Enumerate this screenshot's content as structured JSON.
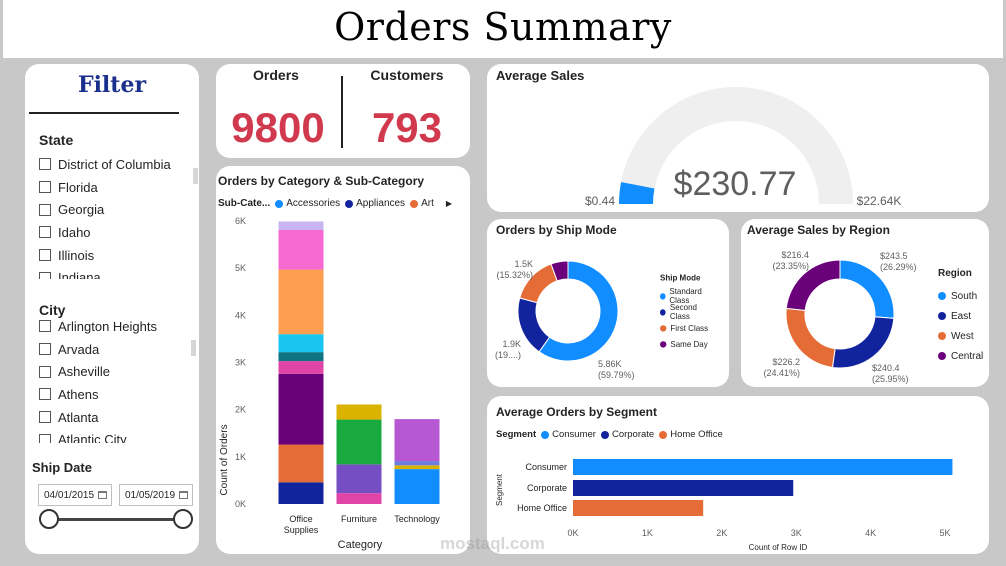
{
  "title": "Orders Summary",
  "filter": {
    "title": "Filter",
    "state": {
      "label": "State",
      "items": [
        "District of Columbia",
        "Florida",
        "Georgia",
        "Idaho",
        "Illinois",
        "Indiana"
      ]
    },
    "city": {
      "label": "City",
      "items": [
        "Arlington Heights",
        "Arvada",
        "Asheville",
        "Athens",
        "Atlanta",
        "Atlantic City"
      ]
    },
    "ship_date": {
      "label": "Ship Date",
      "start": "04/01/2015",
      "end": "01/05/2019"
    }
  },
  "kpis": {
    "orders_label": "Orders",
    "orders_value": "9800",
    "customers_label": "Customers",
    "customers_value": "793"
  },
  "gauge": {
    "title": "Average Sales",
    "value_label": "$230.77",
    "min_label": "$0.44",
    "max_label": "$22.64K",
    "value": 230.77,
    "min": 0.44,
    "max": 22640
  },
  "chart_data": [
    {
      "type": "bar",
      "title": "Orders by Category & Sub-Category",
      "legend_title": "Sub-Cate...",
      "legend": [
        {
          "name": "Accessories",
          "color": "#118dff"
        },
        {
          "name": "Appliances",
          "color": "#12239e"
        },
        {
          "name": "Art",
          "color": "#e66c37"
        }
      ],
      "categories": [
        "Office Supplies",
        "Furniture",
        "Technology"
      ],
      "xlabel": "Category",
      "ylabel": "Count of Orders",
      "yticks": [
        "0K",
        "1K",
        "2K",
        "3K",
        "4K",
        "5K",
        "6K"
      ],
      "ylim": [
        0,
        6000
      ],
      "stacks": [
        {
          "category": "Office Supplies",
          "segments": [
            {
              "value": 460,
              "color": "#12239e"
            },
            {
              "value": 800,
              "color": "#e66c37"
            },
            {
              "value": 1500,
              "color": "#6b007b"
            },
            {
              "value": 270,
              "color": "#e044a7"
            },
            {
              "value": 190,
              "color": "#0f7582"
            },
            {
              "value": 380,
              "color": "#1ac5f2"
            },
            {
              "value": 1370,
              "color": "#fd9d50"
            },
            {
              "value": 840,
              "color": "#f669d1"
            },
            {
              "value": 180,
              "color": "#c8b4f0"
            }
          ]
        },
        {
          "category": "Furniture",
          "segments": [
            {
              "value": 230,
              "color": "#e044a7"
            },
            {
              "value": 610,
              "color": "#744ec2"
            },
            {
              "value": 950,
              "color": "#1aab40"
            },
            {
              "value": 320,
              "color": "#d9b300"
            }
          ]
        },
        {
          "category": "Technology",
          "segments": [
            {
              "value": 740,
              "color": "#118dff"
            },
            {
              "value": 80,
              "color": "#d9b300"
            },
            {
              "value": 90,
              "color": "#6b7fde"
            },
            {
              "value": 890,
              "color": "#b658d1"
            }
          ]
        }
      ]
    },
    {
      "type": "pie",
      "title": "Orders by Ship Mode",
      "legend_title": "Ship Mode",
      "slices": [
        {
          "name": "Standard Class",
          "value": 5860,
          "pct": "59.79%",
          "label": "5.86K",
          "color": "#118dff"
        },
        {
          "name": "Second Class",
          "value": 1900,
          "pct": "(19....)",
          "label": "1.9K",
          "color": "#12239e"
        },
        {
          "name": "First Class",
          "value": 1500,
          "pct": "15.32%",
          "label": "1.5K",
          "color": "#e66c37"
        },
        {
          "name": "Same Day",
          "value": 540,
          "pct": "",
          "label": "",
          "color": "#6b007b"
        }
      ]
    },
    {
      "type": "pie",
      "title": "Average Sales by Region",
      "legend_title": "Region",
      "slices": [
        {
          "name": "South",
          "value": 243.5,
          "pct": "26.29%",
          "label": "$243.5",
          "color": "#118dff"
        },
        {
          "name": "East",
          "value": 240.4,
          "pct": "25.95%",
          "label": "$240.4",
          "color": "#12239e"
        },
        {
          "name": "West",
          "value": 226.2,
          "pct": "24.41%",
          "label": "$226.2",
          "color": "#e66c37"
        },
        {
          "name": "Central",
          "value": 216.4,
          "pct": "23.35%",
          "label": "$216.4",
          "color": "#6b007b"
        }
      ]
    },
    {
      "type": "bar",
      "orientation": "horizontal",
      "title": "Average Orders by Segment",
      "legend_title": "Segment",
      "legend": [
        {
          "name": "Consumer",
          "color": "#118dff"
        },
        {
          "name": "Corporate",
          "color": "#12239e"
        },
        {
          "name": "Home Office",
          "color": "#e66c37"
        }
      ],
      "categories": [
        "Consumer",
        "Corporate",
        "Home Office"
      ],
      "values": [
        5100,
        2960,
        1750
      ],
      "colors": [
        "#118dff",
        "#12239e",
        "#e66c37"
      ],
      "xticks": [
        "0K",
        "1K",
        "2K",
        "3K",
        "4K",
        "5K"
      ],
      "xlim": [
        0,
        5000
      ],
      "xlabel": "Count of Row ID",
      "ylabel": "Segment"
    }
  ],
  "watermark": "mostaql.com"
}
